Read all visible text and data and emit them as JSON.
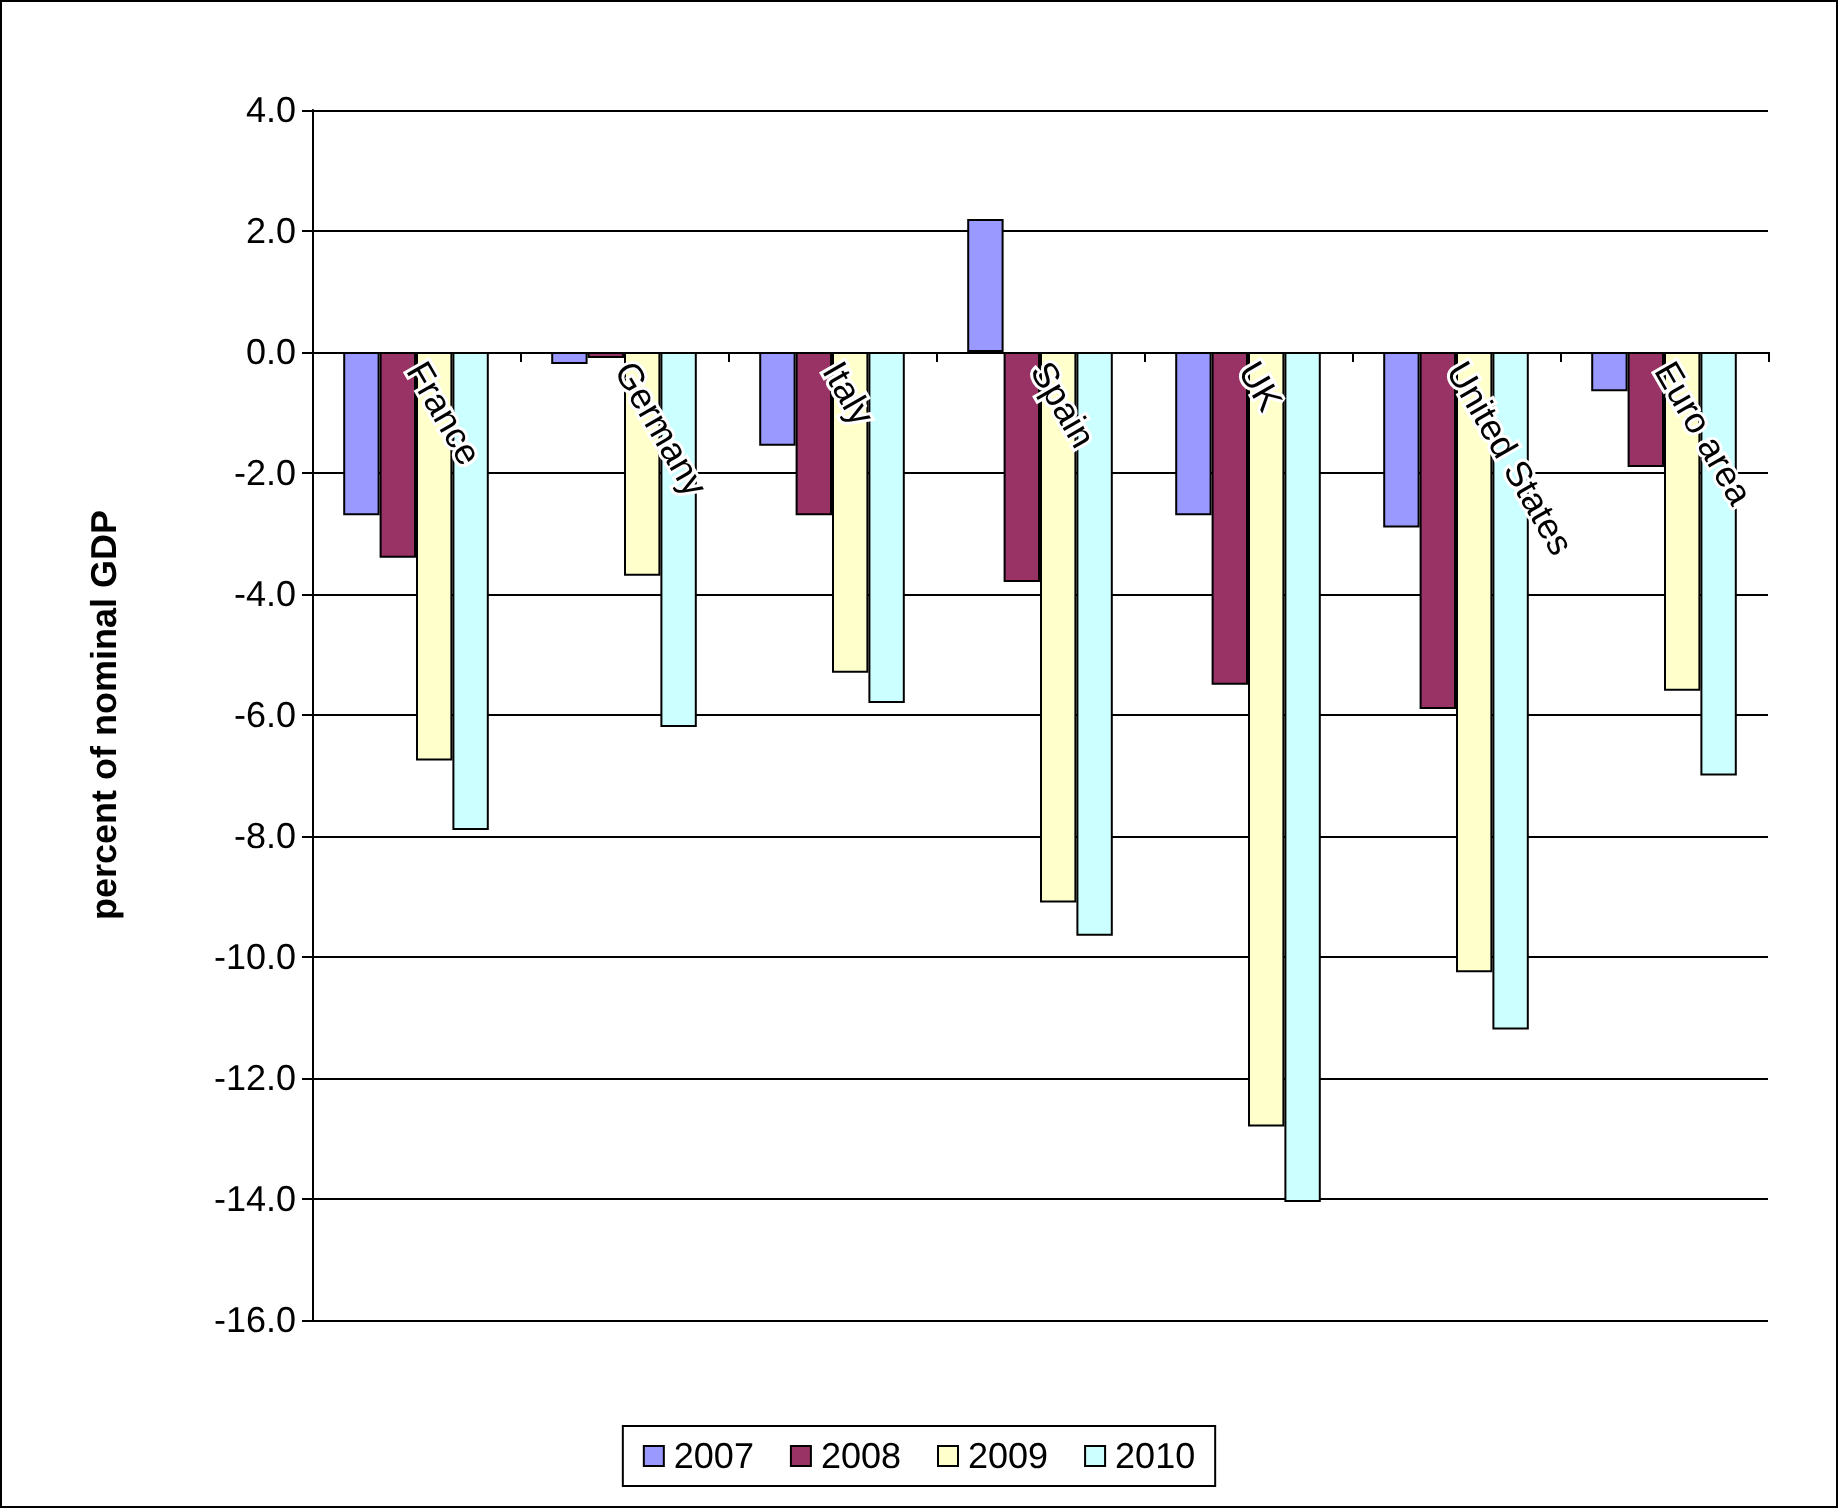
{
  "chart_data": {
    "type": "bar",
    "ylabel": "percent of nominal GDP",
    "categories": [
      "France",
      "Germany",
      "Italy",
      "Spain",
      "UK",
      "United States",
      "Euro area"
    ],
    "series": [
      {
        "name": "2007",
        "color": "#9999ff",
        "values": [
          -2.7,
          -0.2,
          -1.55,
          2.2,
          -2.7,
          -2.9,
          -0.65
        ]
      },
      {
        "name": "2008",
        "color": "#993366",
        "values": [
          -3.4,
          -0.1,
          -2.7,
          -3.8,
          -5.5,
          -5.9,
          -1.9
        ]
      },
      {
        "name": "2009",
        "color": "#ffffcc",
        "values": [
          -6.75,
          -3.7,
          -5.3,
          -9.1,
          -12.8,
          -10.25,
          -5.6
        ]
      },
      {
        "name": "2010",
        "color": "#ccffff",
        "values": [
          -7.9,
          -6.2,
          -5.8,
          -9.65,
          -14.05,
          -11.2,
          -7.0
        ]
      }
    ],
    "ylim": [
      -16,
      4
    ],
    "yticks": [
      {
        "value": 4,
        "label": "4.0"
      },
      {
        "value": 2,
        "label": "2.0"
      },
      {
        "value": 0,
        "label": "0.0"
      },
      {
        "value": -2,
        "label": "-2.0"
      },
      {
        "value": -4,
        "label": "-4.0"
      },
      {
        "value": -6,
        "label": "-6.0"
      },
      {
        "value": -8,
        "label": "-8.0"
      },
      {
        "value": -10,
        "label": "-10.0"
      },
      {
        "value": -12,
        "label": "-12.0"
      },
      {
        "value": -14,
        "label": "-14.0"
      },
      {
        "value": -16,
        "label": "-16.0"
      }
    ],
    "grid": "y",
    "legend": "bottom"
  }
}
